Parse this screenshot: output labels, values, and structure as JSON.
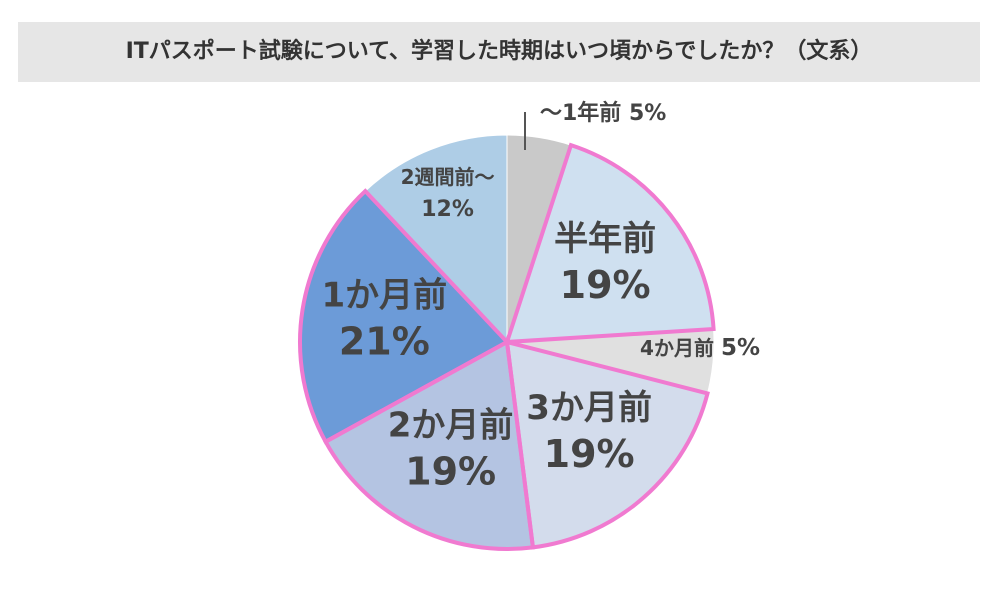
{
  "title": "ITパスポート試験について、学習した時期はいつ頃からでしたか？（文系）",
  "chart_data": {
    "type": "pie",
    "start_angle": "12 o'clock, clockwise",
    "slices": [
      {
        "label": "〜1年前",
        "percent": "5%",
        "value": 5,
        "color": "#c9c9c9",
        "highlight": false,
        "label_style": "outside-leader"
      },
      {
        "label": "半年前",
        "percent": "19%",
        "value": 19,
        "color": "#cfe0f0",
        "highlight": true,
        "label_style": "inside-large"
      },
      {
        "label": "4か月前",
        "percent": "5%",
        "value": 5,
        "color": "#e0e0e0",
        "highlight": false,
        "label_style": "outside-small"
      },
      {
        "label": "3か月前",
        "percent": "19%",
        "value": 19,
        "color": "#d3dcec",
        "highlight": true,
        "label_style": "inside-large"
      },
      {
        "label": "2か月前",
        "percent": "19%",
        "value": 19,
        "color": "#b4c4e2",
        "highlight": true,
        "label_style": "inside-large"
      },
      {
        "label": "1か月前",
        "percent": "21%",
        "value": 21,
        "color": "#6c9bd8",
        "highlight": true,
        "label_style": "inside-large"
      },
      {
        "label": "2週間前〜",
        "percent": "12%",
        "value": 12,
        "color": "#aecde6",
        "highlight": false,
        "label_style": "inside-small"
      }
    ],
    "highlight_color": "#f07ad0"
  }
}
